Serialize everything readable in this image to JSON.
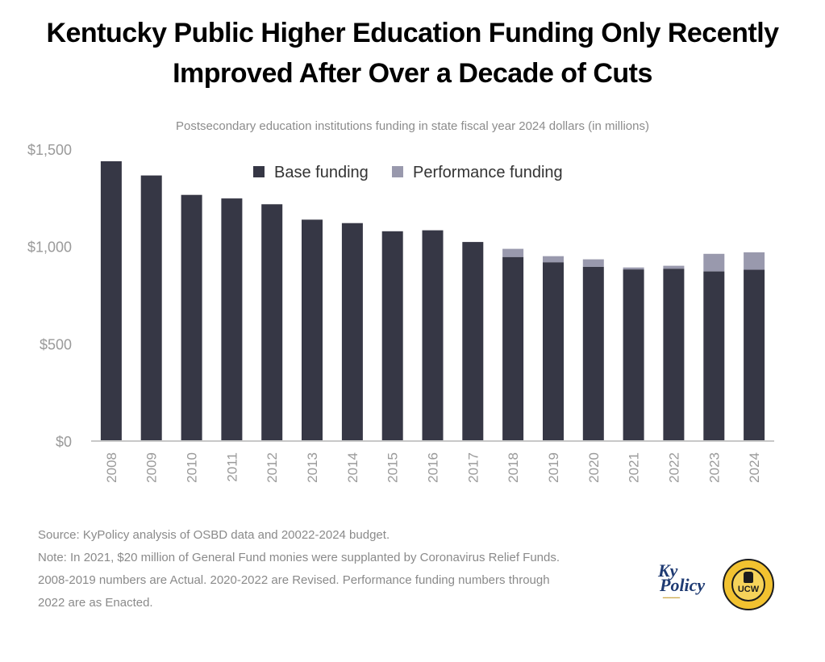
{
  "title_lines": [
    "Kentucky Public Higher Education Funding Only Recently",
    "Improved After Over a Decade of Cuts"
  ],
  "notes": [
    "Source: KyPolicy analysis of OSBD data and 20022-2024 budget.",
    "Note: In 2021, $20 million of General Fund monies were supplanted by Coronavirus Relief Funds.",
    "2008-2019 numbers are Actual.  2020-2022 are Revised. Performance funding numbers through",
    "2022 are as Enacted."
  ],
  "logos": {
    "kypolicy_line1": "Ky",
    "kypolicy_line2": "Policy",
    "ucw_text": "UCW"
  },
  "chart_data": {
    "type": "bar",
    "stacked": true,
    "title": "Postsecondary education institutions funding in state fiscal year 2024 dollars (in millions)",
    "categories": [
      "2008",
      "2009",
      "2010",
      "2011",
      "2012",
      "2013",
      "2014",
      "2015",
      "2016",
      "2017",
      "2018",
      "2019",
      "2020",
      "2021",
      "2022",
      "2023",
      "2024"
    ],
    "series": [
      {
        "name": "Base funding",
        "color": "#363745",
        "values": [
          1438,
          1365,
          1265,
          1247,
          1217,
          1138,
          1120,
          1078,
          1083,
          1023,
          946,
          919,
          896,
          882,
          886,
          872,
          881
        ]
      },
      {
        "name": "Performance funding",
        "color": "#9999ad",
        "values": [
          0,
          0,
          0,
          0,
          0,
          0,
          0,
          0,
          0,
          0,
          42,
          31,
          38,
          10,
          15,
          90,
          89
        ]
      }
    ],
    "ylim": [
      0,
      1500
    ],
    "yticks": [
      0,
      500,
      1000,
      1500
    ],
    "ytick_labels": [
      "$0",
      "$500",
      "$1,000",
      "$1,500"
    ],
    "legend_position": "top-center",
    "grid": false,
    "colors": {
      "axis": "#c8c8c8",
      "tick_text": "#9a9a9a",
      "legend_text": "#333333"
    }
  }
}
